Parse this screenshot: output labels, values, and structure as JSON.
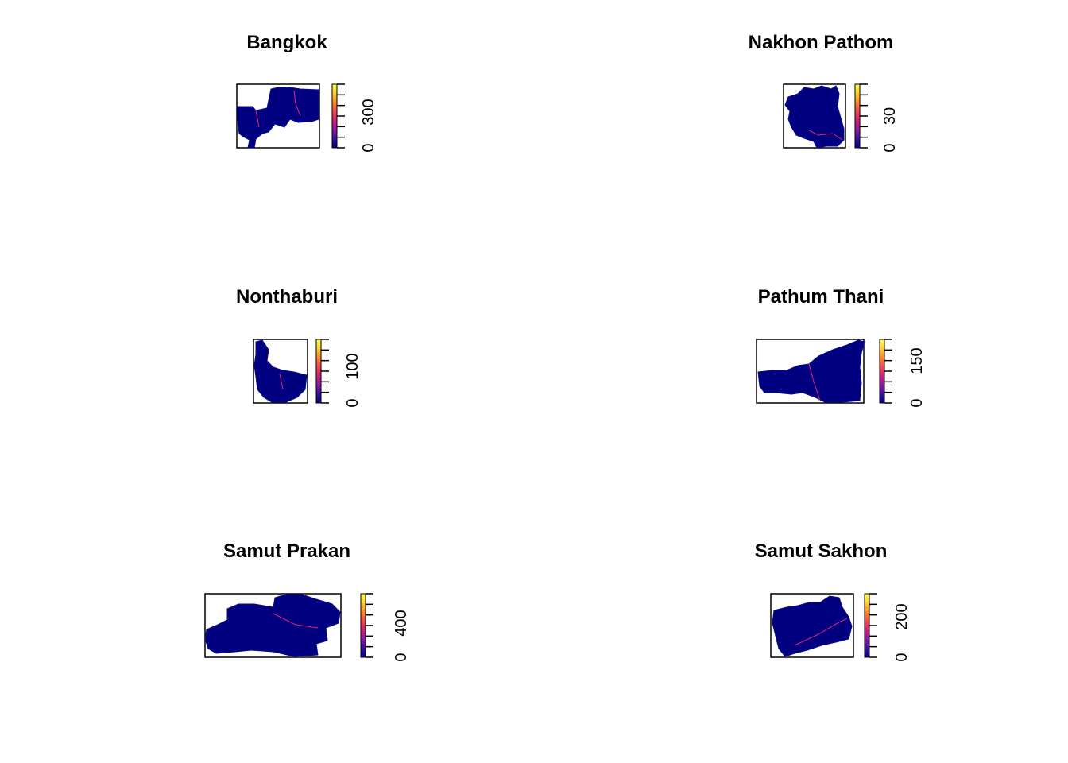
{
  "colors": {
    "background": "#ffffff",
    "map_fill": "#000080",
    "map_edge": "#0a0a8c",
    "frame": "#000000",
    "gradient": [
      "#00008B",
      "#3F0FA0",
      "#8A1A9E",
      "#D01F79",
      "#F5474B",
      "#FF8A28",
      "#FFD02A",
      "#FFFF50"
    ],
    "road": "#E8217A"
  },
  "panels": [
    {
      "id": "bangkok",
      "title": "Bangkok",
      "legend_ticks": [
        "0",
        "300"
      ],
      "legend_max": 420
    },
    {
      "id": "nakhon-pathom",
      "title": "Nakhon Pathom",
      "legend_ticks": [
        "0",
        "30"
      ],
      "legend_max": 55
    },
    {
      "id": "nonthaburi",
      "title": "Nonthaburi",
      "legend_ticks": [
        "0",
        "100"
      ],
      "legend_max": 160
    },
    {
      "id": "pathum-thani",
      "title": "Pathum Thani",
      "legend_ticks": [
        "0",
        "150"
      ],
      "legend_max": 210
    },
    {
      "id": "samut-prakan",
      "title": "Samut Prakan",
      "legend_ticks": [
        "0",
        "400"
      ],
      "legend_max": 620
    },
    {
      "id": "samut-sakhon",
      "title": "Samut Sakhon",
      "legend_ticks": [
        "0",
        "200"
      ],
      "legend_max": 320
    }
  ]
}
